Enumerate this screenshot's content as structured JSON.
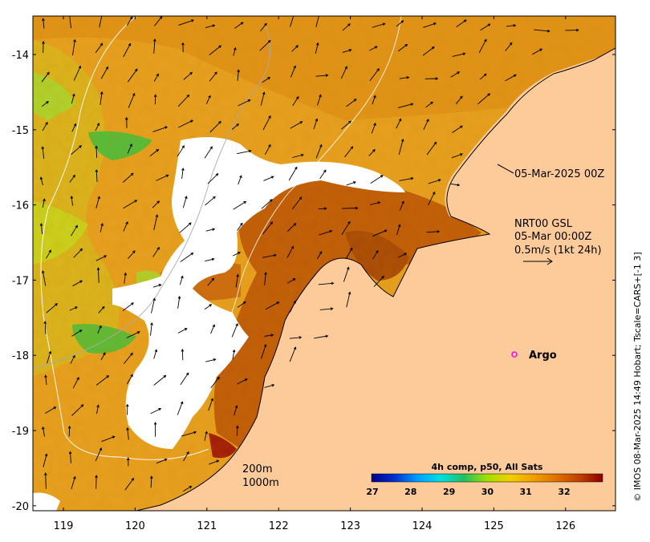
{
  "map": {
    "annotation_date": "05-Mar-2025 00Z",
    "current_title": "NRT00 GSL",
    "current_time": "05-Mar 00:00Z",
    "current_scale": "0.5m/s (1kt 24h)",
    "argo_label": "Argo",
    "contour_200": "200m",
    "contour_1000": "1000m",
    "colorbar_title": "4h comp, p50, All Sats",
    "colorbar_ticks": [
      "27",
      "28",
      "29",
      "30",
      "31",
      "32"
    ],
    "colorbar_stops": [
      "#00008b",
      "#0030d0",
      "#00a0ff",
      "#00e0e0",
      "#20c060",
      "#a0e000",
      "#f0d000",
      "#f0a000",
      "#e07000",
      "#c04000",
      "#8b0000"
    ],
    "credit": "© IMOS 08-Mar-2025 14:49 Hobart; Tscale=CARS+[-1 3]",
    "lat_ticks": [
      "-14",
      "-15",
      "-16",
      "-17",
      "-18",
      "-19",
      "-20"
    ],
    "lon_ticks": [
      "119",
      "120",
      "121",
      "122",
      "123",
      "124",
      "125",
      "126"
    ],
    "colors": {
      "land": "#fdcb9a",
      "cloud": "#ffffff",
      "sst_warm": "#e8a020",
      "sst_hot": "#c05a0a",
      "sst_cool": "#b8d828",
      "argo_marker": "#ff00ff"
    }
  }
}
